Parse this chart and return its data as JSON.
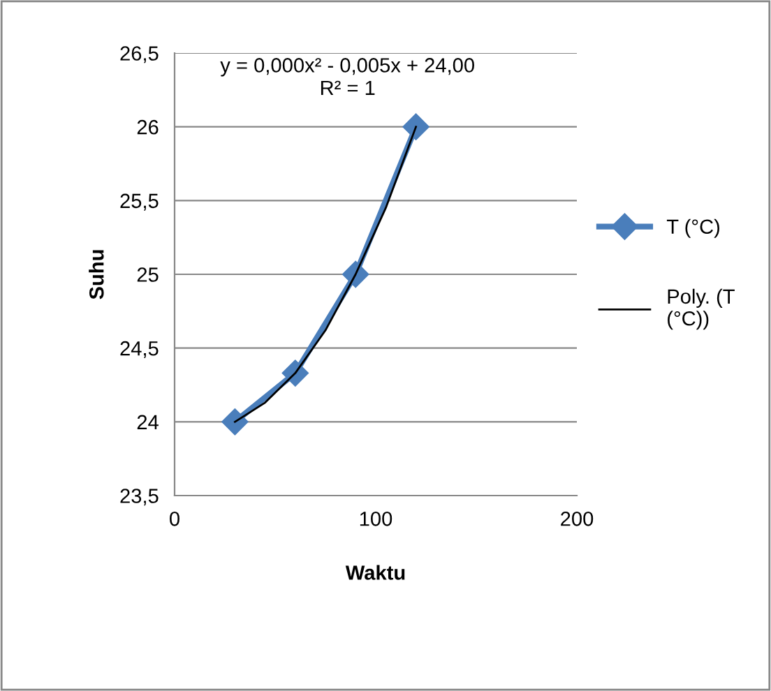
{
  "chart_data": {
    "type": "line",
    "xlabel": "Waktu",
    "ylabel": "Suhu",
    "xlim": [
      0,
      200
    ],
    "xticks": [
      0,
      100,
      200
    ],
    "ylim": [
      23.5,
      26.5
    ],
    "yticks": [
      {
        "value": 23.5,
        "label": "23,5"
      },
      24,
      {
        "value": 24.5,
        "label": "24,5"
      },
      25,
      {
        "value": 25.5,
        "label": "25,5"
      },
      26,
      {
        "value": 26.5,
        "label": "26,5"
      }
    ],
    "grid": "y",
    "legend": "right",
    "marker": "diamond",
    "line_style": "solid",
    "series": [
      {
        "name": "T (°C)",
        "color": "#4a7ebb",
        "x": [
          30,
          60,
          90,
          120
        ],
        "values": [
          24,
          24.33,
          25,
          26
        ]
      },
      {
        "name": "Poly. (T (°C))",
        "color": "#000000",
        "type": "line",
        "marker": "none",
        "x": [
          30,
          45,
          60,
          75,
          90,
          105,
          120
        ],
        "values": [
          24.0,
          24.13,
          24.33,
          24.62,
          25.0,
          25.45,
          26.0
        ]
      }
    ],
    "annotations": [
      "y = 0,000x² - 0,005x + 24,00\nR² = 1"
    ]
  }
}
